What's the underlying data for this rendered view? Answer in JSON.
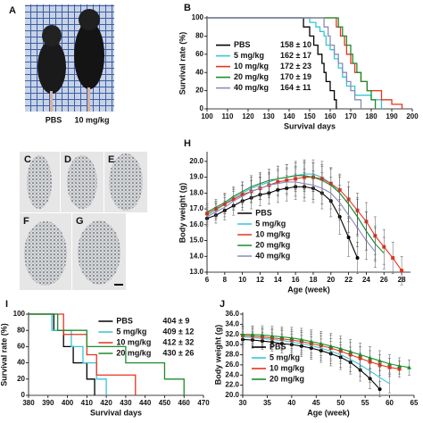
{
  "figure": {
    "photo_panel": "A",
    "photo_captions": [
      "PBS",
      "10 mg/kg"
    ],
    "histology_panels": [
      "C",
      "D",
      "E",
      "F",
      "G"
    ]
  },
  "chart_data": [
    {
      "type": "line",
      "step": true,
      "panel": "B",
      "xlabel": "Survival days",
      "ylabel": "Survival rate (%)",
      "xlim": [
        100,
        200
      ],
      "xticks": [
        100,
        110,
        120,
        130,
        140,
        150,
        160,
        170,
        180,
        190,
        200
      ],
      "ylim": [
        0,
        100
      ],
      "yticks": [
        0,
        20,
        40,
        60,
        80,
        100
      ],
      "legend": "center left",
      "series": [
        {
          "name": "PBS",
          "stat": "158 ± 10",
          "color": "#000000",
          "x": [
            100,
            147,
            150,
            152,
            154,
            156,
            157,
            158,
            160,
            162,
            163
          ],
          "values": [
            100,
            90,
            80,
            70,
            60,
            50,
            40,
            30,
            20,
            10,
            0
          ]
        },
        {
          "name": "5 mg/kg",
          "stat": "162 ± 17",
          "color": "#33c6d6",
          "x": [
            100,
            150,
            153,
            155,
            157,
            158,
            160,
            162,
            164,
            166,
            168,
            172,
            180,
            185
          ],
          "values": [
            100,
            95,
            90,
            85,
            80,
            70,
            65,
            55,
            45,
            35,
            25,
            15,
            10,
            0
          ]
        },
        {
          "name": "10 mg/kg",
          "stat": "172 ± 23",
          "color": "#e8321e",
          "x": [
            100,
            163,
            165,
            167,
            168,
            170,
            172,
            175,
            178,
            185,
            190,
            195
          ],
          "values": [
            100,
            90,
            80,
            70,
            60,
            50,
            40,
            30,
            20,
            10,
            5,
            0
          ]
        },
        {
          "name": "20 mg/kg",
          "stat": "170 ± 19",
          "color": "#1c8c2c",
          "x": [
            100,
            164,
            166,
            168,
            170,
            171,
            173,
            175,
            178,
            180,
            182
          ],
          "values": [
            100,
            90,
            80,
            70,
            60,
            50,
            40,
            30,
            20,
            10,
            0
          ]
        },
        {
          "name": "40 mg/kg",
          "stat": "164 ± 11",
          "color": "#8a8ab8",
          "x": [
            100,
            157,
            159,
            160,
            162,
            164,
            166,
            168,
            170,
            172,
            175
          ],
          "values": [
            100,
            90,
            80,
            70,
            60,
            50,
            40,
            30,
            20,
            10,
            0
          ]
        }
      ]
    },
    {
      "type": "line",
      "step": false,
      "panel": "H",
      "xlabel": "Age (week)",
      "ylabel": "Body weight (g)",
      "xlim": [
        6,
        29
      ],
      "xticks": [
        6,
        8,
        10,
        12,
        14,
        16,
        18,
        20,
        22,
        24,
        26,
        28
      ],
      "ylim": [
        13,
        20.5
      ],
      "yticks": [
        {
          "value": 13,
          "label": "13.0"
        },
        {
          "value": 14,
          "label": "14.0"
        },
        {
          "value": 15,
          "label": "15.0"
        },
        {
          "value": 16,
          "label": "16.0"
        },
        {
          "value": 17,
          "label": "17.0"
        },
        {
          "value": 18,
          "label": "18.0"
        },
        {
          "value": 19,
          "label": "19.0"
        },
        {
          "value": 20,
          "label": "20.0"
        }
      ],
      "legend": "lower center",
      "series": [
        {
          "name": "PBS",
          "color": "#000000",
          "marker": "circle",
          "x": [
            6,
            7,
            8,
            9,
            10,
            11,
            12,
            13,
            14,
            15,
            16,
            17,
            18,
            19,
            20,
            21,
            22,
            23
          ],
          "values": [
            16.4,
            16.6,
            16.9,
            17.2,
            17.5,
            17.7,
            17.9,
            18.0,
            18.2,
            18.3,
            18.4,
            18.4,
            18.3,
            18.0,
            17.5,
            16.5,
            15.2,
            13.9
          ],
          "errors": [
            0.5,
            0.5,
            0.6,
            0.6,
            0.6,
            0.7,
            0.7,
            0.7,
            0.8,
            0.8,
            0.8,
            0.9,
            0.9,
            1.0,
            1.0,
            1.1,
            1.2,
            1.0
          ]
        },
        {
          "name": "5 mg/kg",
          "color": "#33c6d6",
          "marker": "none",
          "x": [
            6,
            7,
            8,
            9,
            10,
            11,
            12,
            13,
            14,
            15,
            16,
            17,
            18,
            19,
            20,
            21,
            22,
            23,
            24,
            25
          ],
          "values": [
            16.6,
            16.9,
            17.3,
            17.7,
            18.0,
            18.3,
            18.5,
            18.7,
            18.9,
            19.0,
            19.1,
            19.2,
            19.2,
            19.0,
            18.6,
            18.0,
            17.3,
            16.5,
            15.6,
            14.8
          ],
          "errors": [
            0.5,
            0.5,
            0.6,
            0.6,
            0.7,
            0.7,
            0.7,
            0.8,
            0.8,
            0.8,
            0.9,
            0.9,
            0.9,
            1.0,
            1.0,
            1.1,
            1.1,
            1.2,
            1.2,
            1.0
          ]
        },
        {
          "name": "10 mg/kg",
          "color": "#e8321e",
          "marker": "square",
          "x": [
            6,
            7,
            8,
            9,
            10,
            11,
            12,
            13,
            14,
            15,
            16,
            17,
            18,
            19,
            20,
            21,
            22,
            23,
            24,
            25,
            26,
            27,
            28
          ],
          "values": [
            16.7,
            17.0,
            17.3,
            17.6,
            17.9,
            18.1,
            18.3,
            18.5,
            18.7,
            18.8,
            18.9,
            19.0,
            19.0,
            18.9,
            18.6,
            18.2,
            17.6,
            16.9,
            16.2,
            15.3,
            14.6,
            13.9,
            13.1
          ],
          "errors": [
            0.5,
            0.5,
            0.6,
            0.6,
            0.6,
            0.7,
            0.7,
            0.7,
            0.8,
            0.8,
            0.8,
            0.9,
            0.9,
            0.9,
            1.0,
            1.0,
            1.1,
            1.1,
            1.2,
            1.2,
            1.1,
            1.0,
            0.9
          ]
        },
        {
          "name": "20 mg/kg",
          "color": "#1c8c2c",
          "marker": "none",
          "x": [
            6,
            7,
            8,
            9,
            10,
            11,
            12,
            13,
            14,
            15,
            16,
            17,
            18,
            19,
            20,
            21,
            22,
            23,
            24,
            25,
            26
          ],
          "values": [
            16.8,
            17.1,
            17.4,
            17.8,
            18.1,
            18.4,
            18.6,
            18.8,
            18.9,
            19.0,
            19.1,
            19.1,
            19.0,
            18.8,
            18.5,
            18.0,
            17.3,
            16.5,
            15.6,
            14.8,
            14.2
          ],
          "errors": [
            0.5,
            0.5,
            0.6,
            0.6,
            0.6,
            0.7,
            0.7,
            0.7,
            0.8,
            0.8,
            0.8,
            0.9,
            0.9,
            0.9,
            1.0,
            1.0,
            1.1,
            1.1,
            1.2,
            1.1,
            1.0
          ]
        },
        {
          "name": "40 mg/kg",
          "color": "#8a8ab8",
          "marker": "none",
          "x": [
            6,
            7,
            8,
            9,
            10,
            11,
            12,
            13,
            14,
            15,
            16,
            17,
            18,
            19,
            20,
            21,
            22,
            23,
            24,
            25
          ],
          "values": [
            16.5,
            16.8,
            17.1,
            17.5,
            17.8,
            18.1,
            18.3,
            18.5,
            18.6,
            18.7,
            18.7,
            18.6,
            18.5,
            18.3,
            18.0,
            17.4,
            16.6,
            15.8,
            15.0,
            14.3
          ],
          "errors": [
            0.5,
            0.5,
            0.6,
            0.6,
            0.7,
            0.7,
            0.7,
            0.8,
            0.8,
            0.8,
            0.9,
            0.9,
            0.9,
            1.0,
            1.0,
            1.1,
            1.1,
            1.2,
            1.2,
            1.0
          ]
        }
      ]
    },
    {
      "type": "line",
      "step": true,
      "panel": "I",
      "xlabel": "Survival days",
      "ylabel": "Survival rate (%)",
      "xlim": [
        380,
        470
      ],
      "xticks": [
        380,
        390,
        400,
        410,
        420,
        430,
        440,
        450,
        460,
        470
      ],
      "ylim": [
        0,
        100
      ],
      "yticks": [
        0,
        20,
        40,
        60,
        80,
        100
      ],
      "legend": "upper right",
      "series": [
        {
          "name": "PBS",
          "stat": "404 ± 9",
          "color": "#000000",
          "x": [
            380,
            393,
            398,
            403,
            410,
            414
          ],
          "values": [
            100,
            80,
            60,
            40,
            20,
            0
          ]
        },
        {
          "name": "5 mg/kg",
          "stat": "409 ± 12",
          "color": "#33c6d6",
          "x": [
            380,
            392,
            402,
            408,
            415,
            420
          ],
          "values": [
            100,
            80,
            60,
            40,
            20,
            0
          ]
        },
        {
          "name": "10 mg/kg",
          "stat": "412 ± 32",
          "color": "#e8321e",
          "x": [
            380,
            398,
            410,
            415,
            435
          ],
          "values": [
            100,
            75,
            50,
            25,
            0
          ]
        },
        {
          "name": "20 mg/kg",
          "stat": "430 ± 26",
          "color": "#1c8c2c",
          "x": [
            380,
            395,
            410,
            430,
            450,
            460
          ],
          "values": [
            100,
            80,
            60,
            40,
            20,
            0
          ]
        }
      ]
    },
    {
      "type": "line",
      "step": false,
      "panel": "J",
      "xlabel": "Age (week)",
      "ylabel": "Body weight (g)",
      "xlim": [
        30,
        65
      ],
      "xticks": [
        30,
        35,
        40,
        45,
        50,
        55,
        60,
        65
      ],
      "ylim": [
        20,
        36
      ],
      "yticks": [
        {
          "value": 20,
          "label": "20.0"
        },
        {
          "value": 22,
          "label": "22.0"
        },
        {
          "value": 24,
          "label": "24.0"
        },
        {
          "value": 26,
          "label": "26.0"
        },
        {
          "value": 28,
          "label": "28.0"
        },
        {
          "value": 30,
          "label": "30.0"
        },
        {
          "value": 32,
          "label": "32.0"
        },
        {
          "value": 34,
          "label": "34.0"
        },
        {
          "value": 36,
          "label": "36.0"
        }
      ],
      "legend": "lower left",
      "series": [
        {
          "name": "PBS",
          "color": "#000000",
          "marker": "circle",
          "x": [
            30,
            32,
            34,
            36,
            38,
            40,
            42,
            44,
            46,
            48,
            50,
            52,
            54,
            56,
            58
          ],
          "values": [
            31.0,
            30.9,
            30.7,
            30.5,
            30.2,
            30.0,
            29.7,
            29.3,
            28.8,
            28.2,
            27.5,
            26.5,
            25.0,
            23.3,
            21.2
          ],
          "errors": [
            1.5,
            1.6,
            1.7,
            1.8,
            1.9,
            2.0,
            2.1,
            2.2,
            2.3,
            2.4,
            2.4,
            2.3,
            2.2,
            2.0,
            1.5
          ]
        },
        {
          "name": "5 mg/kg",
          "color": "#33c6d6",
          "marker": "none",
          "x": [
            30,
            32,
            34,
            36,
            38,
            40,
            42,
            44,
            46,
            48,
            50,
            52,
            54,
            56,
            58,
            60
          ],
          "values": [
            31.5,
            31.4,
            31.2,
            31.0,
            30.8,
            30.5,
            30.2,
            29.8,
            29.3,
            28.7,
            28.0,
            27.1,
            26.0,
            24.8,
            23.5,
            22.3
          ],
          "errors": [
            1.6,
            1.7,
            1.8,
            1.9,
            2.0,
            2.1,
            2.2,
            2.3,
            2.4,
            2.5,
            2.5,
            2.4,
            2.3,
            2.2,
            2.0,
            1.8
          ]
        },
        {
          "name": "10 mg/kg",
          "color": "#e8321e",
          "marker": "square",
          "x": [
            30,
            32,
            34,
            36,
            38,
            40,
            42,
            44,
            46,
            48,
            50,
            52,
            54,
            56,
            58,
            60,
            62
          ],
          "values": [
            31.8,
            31.7,
            31.5,
            31.3,
            31.1,
            30.9,
            30.6,
            30.2,
            29.8,
            29.3,
            28.7,
            28.0,
            27.3,
            26.6,
            26.0,
            25.5,
            25.2
          ],
          "errors": [
            1.6,
            1.7,
            1.8,
            1.9,
            2.0,
            2.1,
            2.2,
            2.3,
            2.4,
            2.5,
            2.5,
            2.4,
            2.3,
            2.2,
            2.0,
            1.8,
            1.6
          ]
        },
        {
          "name": "20 mg/kg",
          "color": "#1c8c2c",
          "marker": "triangle",
          "x": [
            30,
            32,
            34,
            36,
            38,
            40,
            42,
            44,
            46,
            48,
            50,
            52,
            54,
            56,
            58,
            60,
            62,
            64
          ],
          "values": [
            32.0,
            32.0,
            31.9,
            31.7,
            31.5,
            31.3,
            31.0,
            30.6,
            30.2,
            29.7,
            29.2,
            28.6,
            28.0,
            27.4,
            26.8,
            26.2,
            25.8,
            25.5
          ],
          "errors": [
            1.6,
            1.7,
            1.8,
            1.9,
            2.0,
            2.1,
            2.2,
            2.3,
            2.4,
            2.5,
            2.5,
            2.4,
            2.3,
            2.2,
            2.0,
            1.8,
            1.6,
            1.5
          ]
        }
      ]
    }
  ]
}
